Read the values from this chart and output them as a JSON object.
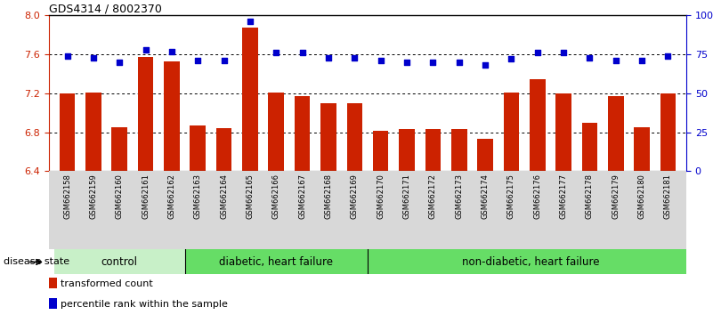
{
  "title": "GDS4314 / 8002370",
  "samples": [
    "GSM662158",
    "GSM662159",
    "GSM662160",
    "GSM662161",
    "GSM662162",
    "GSM662163",
    "GSM662164",
    "GSM662165",
    "GSM662166",
    "GSM662167",
    "GSM662168",
    "GSM662169",
    "GSM662170",
    "GSM662171",
    "GSM662172",
    "GSM662173",
    "GSM662174",
    "GSM662175",
    "GSM662176",
    "GSM662177",
    "GSM662178",
    "GSM662179",
    "GSM662180",
    "GSM662181"
  ],
  "bar_values": [
    7.2,
    7.21,
    6.85,
    7.57,
    7.53,
    6.87,
    6.84,
    7.88,
    7.21,
    7.17,
    7.1,
    7.1,
    6.82,
    6.83,
    6.83,
    6.83,
    6.73,
    7.21,
    7.35,
    7.2,
    6.9,
    7.17,
    6.85,
    7.2
  ],
  "dot_values": [
    74,
    73,
    70,
    78,
    77,
    71,
    71,
    96,
    76,
    76,
    73,
    73,
    71,
    70,
    70,
    70,
    68,
    72,
    76,
    76,
    73,
    71,
    71,
    74
  ],
  "groups": [
    {
      "label": "control",
      "start": 0,
      "end": 5
    },
    {
      "label": "diabetic, heart failure",
      "start": 5,
      "end": 12
    },
    {
      "label": "non-diabetic, heart failure",
      "start": 12,
      "end": 24
    }
  ],
  "group_colors": [
    "#c8f0c8",
    "#66dd66",
    "#66dd66"
  ],
  "bar_color": "#cc2200",
  "dot_color": "#0000cc",
  "ylim_left": [
    6.4,
    8.0
  ],
  "ylim_right": [
    0,
    100
  ],
  "yticks_left": [
    6.4,
    6.8,
    7.2,
    7.6,
    8.0
  ],
  "yticks_right": [
    0,
    25,
    50,
    75,
    100
  ],
  "ytick_labels_right": [
    "0",
    "25",
    "50",
    "75",
    "100%"
  ],
  "grid_lines": [
    6.8,
    7.2,
    7.6
  ],
  "legend_items": [
    {
      "label": "transformed count",
      "color": "#cc2200"
    },
    {
      "label": "percentile rank within the sample",
      "color": "#0000cc"
    }
  ],
  "disease_state_label": "disease state"
}
